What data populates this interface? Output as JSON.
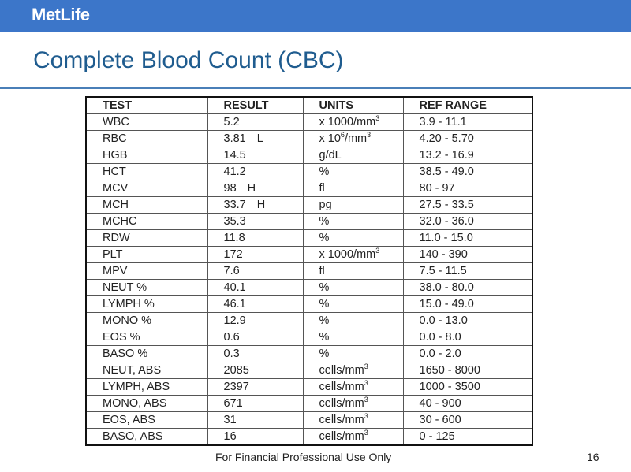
{
  "header": {
    "logo": "MetLife",
    "title": "Complete Blood Count (CBC)"
  },
  "table": {
    "columns": [
      "TEST",
      "RESULT",
      "UNITS",
      "REF RANGE"
    ],
    "rows": [
      {
        "test": "WBC",
        "result": "5.2",
        "flag": "",
        "unit": "x 1000/mm",
        "sup": "3",
        "unit2": "",
        "sup2": "",
        "range": "3.9 - 11.1"
      },
      {
        "test": "RBC",
        "result": "3.81",
        "flag": "L",
        "unit": "x 10",
        "sup": "6",
        "unit2": "/mm",
        "sup2": "3",
        "range": "4.20 - 5.70"
      },
      {
        "test": "HGB",
        "result": "14.5",
        "flag": "",
        "unit": "g/dL",
        "sup": "",
        "unit2": "",
        "sup2": "",
        "range": "13.2 - 16.9"
      },
      {
        "test": "HCT",
        "result": "41.2",
        "flag": "",
        "unit": "%",
        "sup": "",
        "unit2": "",
        "sup2": "",
        "range": "38.5 - 49.0"
      },
      {
        "test": "MCV",
        "result": "98",
        "flag": "H",
        "unit": "fl",
        "sup": "",
        "unit2": "",
        "sup2": "",
        "range": "80 - 97"
      },
      {
        "test": "MCH",
        "result": "33.7",
        "flag": "H",
        "unit": "pg",
        "sup": "",
        "unit2": "",
        "sup2": "",
        "range": "27.5 - 33.5"
      },
      {
        "test": "MCHC",
        "result": "35.3",
        "flag": "",
        "unit": "%",
        "sup": "",
        "unit2": "",
        "sup2": "",
        "range": "32.0 - 36.0"
      },
      {
        "test": "RDW",
        "result": "11.8",
        "flag": "",
        "unit": "%",
        "sup": "",
        "unit2": "",
        "sup2": "",
        "range": "11.0 - 15.0"
      },
      {
        "test": "PLT",
        "result": "172",
        "flag": "",
        "unit": "x 1000/mm",
        "sup": "3",
        "unit2": "",
        "sup2": "",
        "range": "140 - 390"
      },
      {
        "test": "MPV",
        "result": "7.6",
        "flag": "",
        "unit": "fl",
        "sup": "",
        "unit2": "",
        "sup2": "",
        "range": "7.5 - 11.5"
      },
      {
        "test": "NEUT %",
        "result": "40.1",
        "flag": "",
        "unit": "%",
        "sup": "",
        "unit2": "",
        "sup2": "",
        "range": "38.0 - 80.0"
      },
      {
        "test": "LYMPH %",
        "result": "46.1",
        "flag": "",
        "unit": "%",
        "sup": "",
        "unit2": "",
        "sup2": "",
        "range": "15.0 - 49.0"
      },
      {
        "test": "MONO %",
        "result": "12.9",
        "flag": "",
        "unit": "%",
        "sup": "",
        "unit2": "",
        "sup2": "",
        "range": "0.0 - 13.0"
      },
      {
        "test": "EOS %",
        "result": "0.6",
        "flag": "",
        "unit": "%",
        "sup": "",
        "unit2": "",
        "sup2": "",
        "range": "0.0 - 8.0"
      },
      {
        "test": "BASO %",
        "result": "0.3",
        "flag": "",
        "unit": "%",
        "sup": "",
        "unit2": "",
        "sup2": "",
        "range": "0.0 - 2.0"
      },
      {
        "test": "NEUT, ABS",
        "result": "2085",
        "flag": "",
        "unit": "cells/mm",
        "sup": "3",
        "unit2": "",
        "sup2": "",
        "range": "1650 - 8000"
      },
      {
        "test": "LYMPH, ABS",
        "result": "2397",
        "flag": "",
        "unit": "cells/mm",
        "sup": "3",
        "unit2": "",
        "sup2": "",
        "range": "1000 - 3500"
      },
      {
        "test": "MONO, ABS",
        "result": "671",
        "flag": "",
        "unit": "cells/mm",
        "sup": "3",
        "unit2": "",
        "sup2": "",
        "range": "40 - 900"
      },
      {
        "test": "EOS, ABS",
        "result": "31",
        "flag": "",
        "unit": "cells/mm",
        "sup": "3",
        "unit2": "",
        "sup2": "",
        "range": "30 - 600"
      },
      {
        "test": "BASO, ABS",
        "result": "16",
        "flag": "",
        "unit": "cells/mm",
        "sup": "3",
        "unit2": "",
        "sup2": "",
        "range": "0 - 125"
      }
    ]
  },
  "footer": {
    "text": "For Financial Professional Use Only",
    "page": "16"
  }
}
